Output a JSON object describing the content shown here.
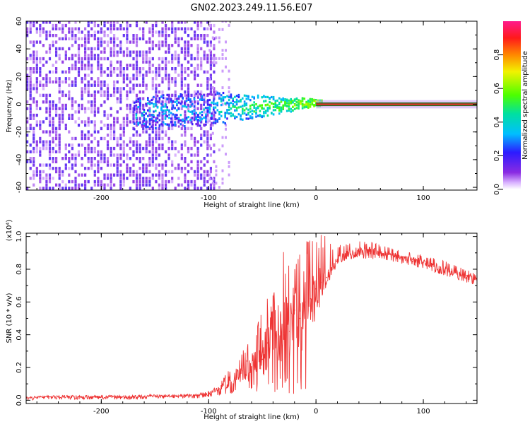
{
  "figure": {
    "title": "GN02.2023.249.11.56.E07",
    "background": "#ffffff",
    "axis_color": "#000000"
  },
  "chart_data": [
    {
      "type": "heatmap",
      "xlabel": "Height of straight line (km)",
      "ylabel": "Frequency (Hz)",
      "xlim": [
        -270,
        150
      ],
      "ylim": [
        -62,
        60
      ],
      "xticks": [
        -200,
        -100,
        0,
        100
      ],
      "xtick_labels": [
        "-200",
        "-100",
        "0",
        "100"
      ],
      "yticks": [
        -60,
        -40,
        -20,
        0,
        20,
        40,
        60
      ],
      "ytick_labels": [
        "-60",
        "-40",
        "-20",
        "0",
        "20",
        "40",
        "60"
      ],
      "colormap": "rainbow (white-violet-blue-cyan-green-yellow-orange-red-magenta)",
      "colorbar": {
        "label": "Normalized spectral amplitude",
        "range": [
          0,
          1
        ],
        "ticks": [
          0,
          0.2,
          0.4,
          0.6,
          0.8
        ],
        "tick_labels": [
          "0.0",
          "0.2",
          "0.4",
          "0.6",
          "0.8"
        ]
      },
      "description_regions": [
        {
          "x_range": [
            -270,
            -95
          ],
          "y_range": [
            -62,
            60
          ],
          "amplitude": 0.2,
          "pattern": "broadband noise"
        },
        {
          "x_range": [
            -95,
            5
          ],
          "y_range": [
            -10,
            5
          ],
          "amplitude": 0.45,
          "pattern": "narrowing band around 0 Hz"
        },
        {
          "x_range": [
            0,
            150
          ],
          "y_range": [
            -1,
            1
          ],
          "amplitude": 0.9,
          "pattern": "single line at 0 Hz"
        }
      ],
      "line_at_0Hz": {
        "x_start": 0,
        "x_end": 150,
        "color": "#e8312a"
      }
    },
    {
      "type": "line",
      "xlabel": "Height of straight line (km)",
      "ylabel": "SNR (10 * v/v)",
      "y_multiplier_label": "(x10⁴)",
      "xlim": [
        -270,
        150
      ],
      "ylim": [
        -0.02,
        1.02
      ],
      "xticks": [
        -200,
        -100,
        0,
        100
      ],
      "xtick_labels": [
        "-200",
        "-100",
        "0",
        "100"
      ],
      "yticks": [
        0,
        0.2,
        0.4,
        0.6,
        0.8,
        1.0
      ],
      "ytick_labels": [
        "0.0",
        "0.2",
        "0.4",
        "0.6",
        "0.8",
        "1.0"
      ],
      "color": "#ee3333",
      "x": [
        -270,
        -250,
        -230,
        -210,
        -190,
        -170,
        -150,
        -130,
        -110,
        -100,
        -90,
        -80,
        -70,
        -60,
        -50,
        -45,
        -40,
        -35,
        -30,
        -25,
        -20,
        -15,
        -10,
        -5,
        0,
        5,
        10,
        15,
        20,
        30,
        40,
        50,
        60,
        70,
        80,
        90,
        100,
        110,
        120,
        130,
        140,
        150
      ],
      "y": [
        0.015,
        0.02,
        0.02,
        0.02,
        0.02,
        0.02,
        0.025,
        0.025,
        0.03,
        0.04,
        0.07,
        0.12,
        0.17,
        0.2,
        0.25,
        0.35,
        0.45,
        0.4,
        0.4,
        0.42,
        0.55,
        0.5,
        0.6,
        0.62,
        0.68,
        0.72,
        0.75,
        0.8,
        0.86,
        0.9,
        0.91,
        0.91,
        0.9,
        0.89,
        0.87,
        0.86,
        0.84,
        0.82,
        0.8,
        0.78,
        0.76,
        0.73
      ],
      "envelope_max": [
        0.02,
        0.03,
        0.03,
        0.03,
        0.03,
        0.03,
        0.035,
        0.035,
        0.04,
        0.06,
        0.1,
        0.2,
        0.28,
        0.4,
        0.55,
        0.7,
        0.72,
        0.65,
        0.92,
        0.95,
        0.9,
        0.95,
        0.97,
        0.98,
        1.0,
        1.02,
        1.0,
        0.95,
        0.95,
        0.96,
        0.97,
        0.97,
        0.95,
        0.93,
        0.91,
        0.9,
        0.89,
        0.87,
        0.85,
        0.83,
        0.8,
        0.77
      ],
      "envelope_min": [
        0.0,
        0.005,
        0.005,
        0.005,
        0.005,
        0.005,
        0.01,
        0.01,
        0.01,
        0.02,
        0.03,
        0.04,
        0.05,
        0.05,
        0.05,
        0.04,
        0.04,
        0.04,
        0.03,
        0.02,
        0.01,
        0.02,
        0.02,
        0.42,
        0.5,
        0.6,
        0.72,
        0.78,
        0.83,
        0.86,
        0.87,
        0.86,
        0.86,
        0.85,
        0.83,
        0.82,
        0.8,
        0.78,
        0.76,
        0.74,
        0.72,
        0.7
      ]
    }
  ]
}
